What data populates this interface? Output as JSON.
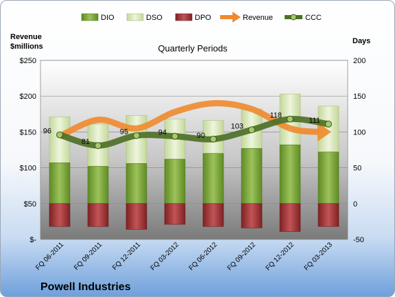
{
  "chart_data": {
    "type": "bar",
    "title": "Quarterly Periods",
    "company": "Powell Industries",
    "y_left_label": [
      "Revenue",
      "$millions"
    ],
    "y_right_label": "Days",
    "y_left_ticks": [
      "$-",
      "$50",
      "$100",
      "$150",
      "$200",
      "$250"
    ],
    "y_right_ticks": [
      "-50",
      "0",
      "50",
      "100",
      "150",
      "200"
    ],
    "y_left_range": [
      0,
      250
    ],
    "y_right_range": [
      -50,
      200
    ],
    "categories": [
      "FQ 06-2011",
      "FQ 09-2011",
      "FQ 12-2011",
      "FQ 03-2012",
      "FQ 06-2012",
      "FQ 09-2012",
      "FQ 12-2012",
      "FQ 03-2013"
    ],
    "legend_placement": "top",
    "series": [
      {
        "name": "DIO",
        "axis": "right",
        "kind": "stacked-bar",
        "color": "#7aa33a",
        "values": [
          57,
          52,
          56,
          62,
          70,
          77,
          82,
          72
        ]
      },
      {
        "name": "DSO",
        "axis": "right",
        "kind": "stacked-bar",
        "color": "#d8e7b8",
        "values": [
          64,
          59,
          67,
          56,
          46,
          55,
          71,
          64
        ]
      },
      {
        "name": "DPO",
        "axis": "right",
        "kind": "negative-bar",
        "color": "#a8383a",
        "values": [
          -32,
          -32,
          -36,
          -29,
          -32,
          -34,
          -39,
          -32
        ]
      },
      {
        "name": "Revenue",
        "axis": "left",
        "kind": "smooth-line",
        "color": "#f08a2e",
        "values": [
          144,
          167,
          155,
          178,
          190,
          182,
          155,
          150
        ]
      },
      {
        "name": "CCC",
        "axis": "right",
        "kind": "smooth-line-markers",
        "color": "#4e7028",
        "values": [
          96,
          81,
          95,
          94,
          90,
          103,
          118,
          111
        ]
      }
    ],
    "ccc_labels": [
      "96",
      "81",
      "95",
      "94",
      "90",
      "103",
      "118",
      "111"
    ],
    "grid": true
  }
}
